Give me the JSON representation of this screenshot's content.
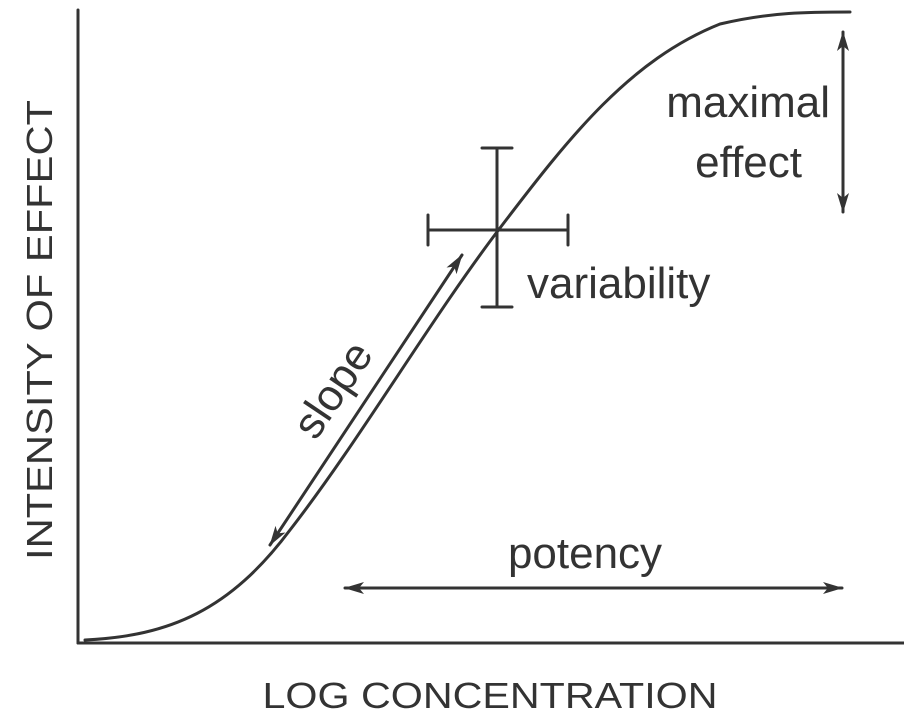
{
  "axes": {
    "x_label": "LOG CONCENTRATION",
    "y_label": "INTENSITY OF EFFECT"
  },
  "annotations": {
    "maximal_effect": [
      "maximal",
      "effect"
    ],
    "variability": "variability",
    "slope": "slope",
    "potency": "potency"
  }
}
